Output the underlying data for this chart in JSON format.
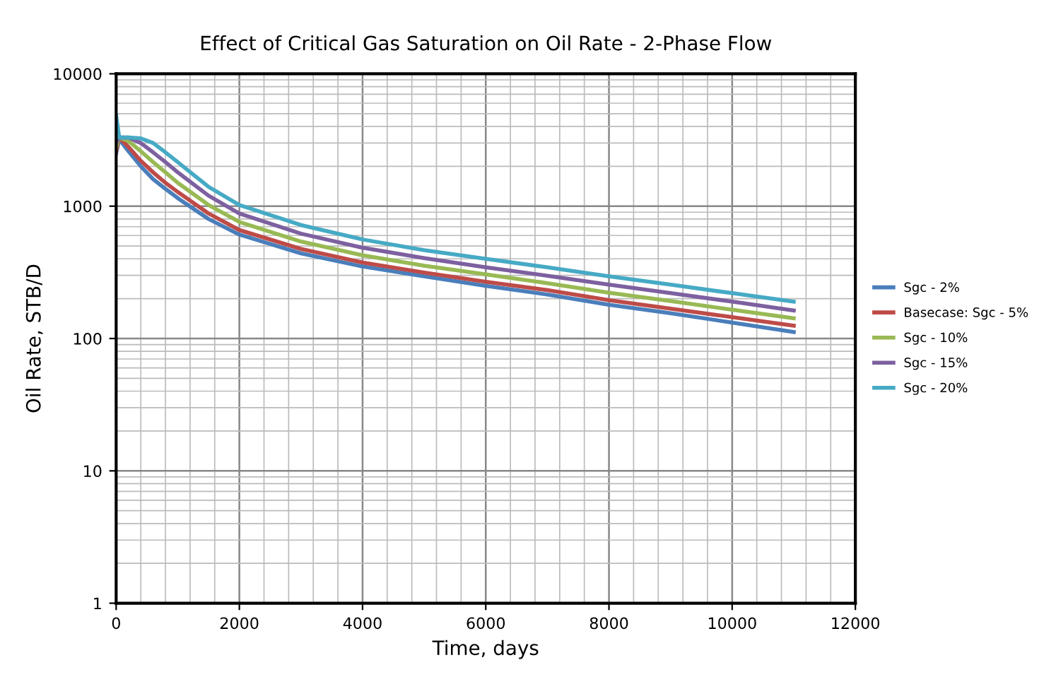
{
  "chart_data": {
    "type": "line",
    "title": "Effect of Critical Gas Saturation on Oil Rate - 2-Phase Flow",
    "xlabel": "Time, days",
    "ylabel": "Oil Rate, STB/D",
    "x": [
      0,
      50,
      200,
      400,
      600,
      800,
      1000,
      1500,
      2000,
      3000,
      4000,
      5000,
      6000,
      7000,
      8000,
      9000,
      10000,
      11000
    ],
    "series": [
      {
        "name": "Sgc - 2%",
        "color": "#4a7ebb",
        "values": [
          2500,
          3200,
          2600,
          2000,
          1600,
          1350,
          1150,
          800,
          610,
          440,
          350,
          295,
          250,
          215,
          180,
          155,
          132,
          112
        ]
      },
      {
        "name": "Basecase: Sgc - 5%",
        "color": "#be4b48",
        "values": [
          2600,
          3300,
          2800,
          2200,
          1800,
          1500,
          1280,
          880,
          660,
          475,
          375,
          315,
          268,
          232,
          195,
          168,
          145,
          125
        ]
      },
      {
        "name": "Sgc - 10%",
        "color": "#98b954",
        "values": [
          2800,
          3300,
          3100,
          2600,
          2150,
          1800,
          1500,
          1020,
          760,
          540,
          425,
          355,
          305,
          262,
          222,
          192,
          165,
          142
        ]
      },
      {
        "name": "Sgc - 15%",
        "color": "#7d60a0",
        "values": [
          3000,
          3300,
          3300,
          3000,
          2550,
          2150,
          1800,
          1200,
          880,
          620,
          485,
          405,
          345,
          298,
          255,
          220,
          190,
          163
        ]
      },
      {
        "name": "Sgc - 20%",
        "color": "#46aac5",
        "values": [
          4800,
          3300,
          3300,
          3250,
          3000,
          2550,
          2150,
          1400,
          1020,
          720,
          560,
          465,
          400,
          345,
          295,
          255,
          220,
          190
        ]
      }
    ],
    "log": "y",
    "xlim": [
      0,
      12000
    ],
    "xticks": [
      0,
      2000,
      4000,
      6000,
      8000,
      10000,
      12000
    ],
    "ylim": [
      1,
      10000
    ],
    "yticks": [
      1,
      10,
      100,
      1000,
      10000
    ],
    "grid": true,
    "legend": "right"
  }
}
